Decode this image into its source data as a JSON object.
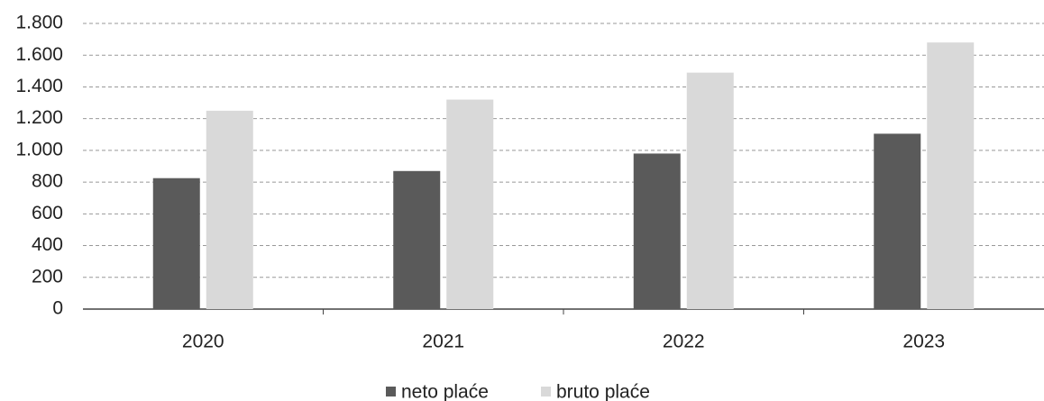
{
  "chart_data": {
    "type": "bar",
    "categories": [
      "2020",
      "2021",
      "2022",
      "2023"
    ],
    "series": [
      {
        "name": "neto plaće",
        "color": "#5a5a5a",
        "values": [
          825,
          870,
          980,
          1105
        ]
      },
      {
        "name": "bruto plaće",
        "color": "#d9d9d9",
        "values": [
          1250,
          1320,
          1490,
          1680
        ]
      }
    ],
    "ylim": [
      0,
      1800
    ],
    "yticks": [
      0,
      200,
      400,
      600,
      800,
      {
        "value": 1000,
        "label": "1.000"
      },
      {
        "value": 1200,
        "label": "1.200"
      },
      {
        "value": 1400,
        "label": "1.400"
      },
      {
        "value": 1600,
        "label": "1.600"
      },
      {
        "value": 1800,
        "label": "1.800"
      }
    ],
    "grid": true,
    "legend": "bottom"
  }
}
